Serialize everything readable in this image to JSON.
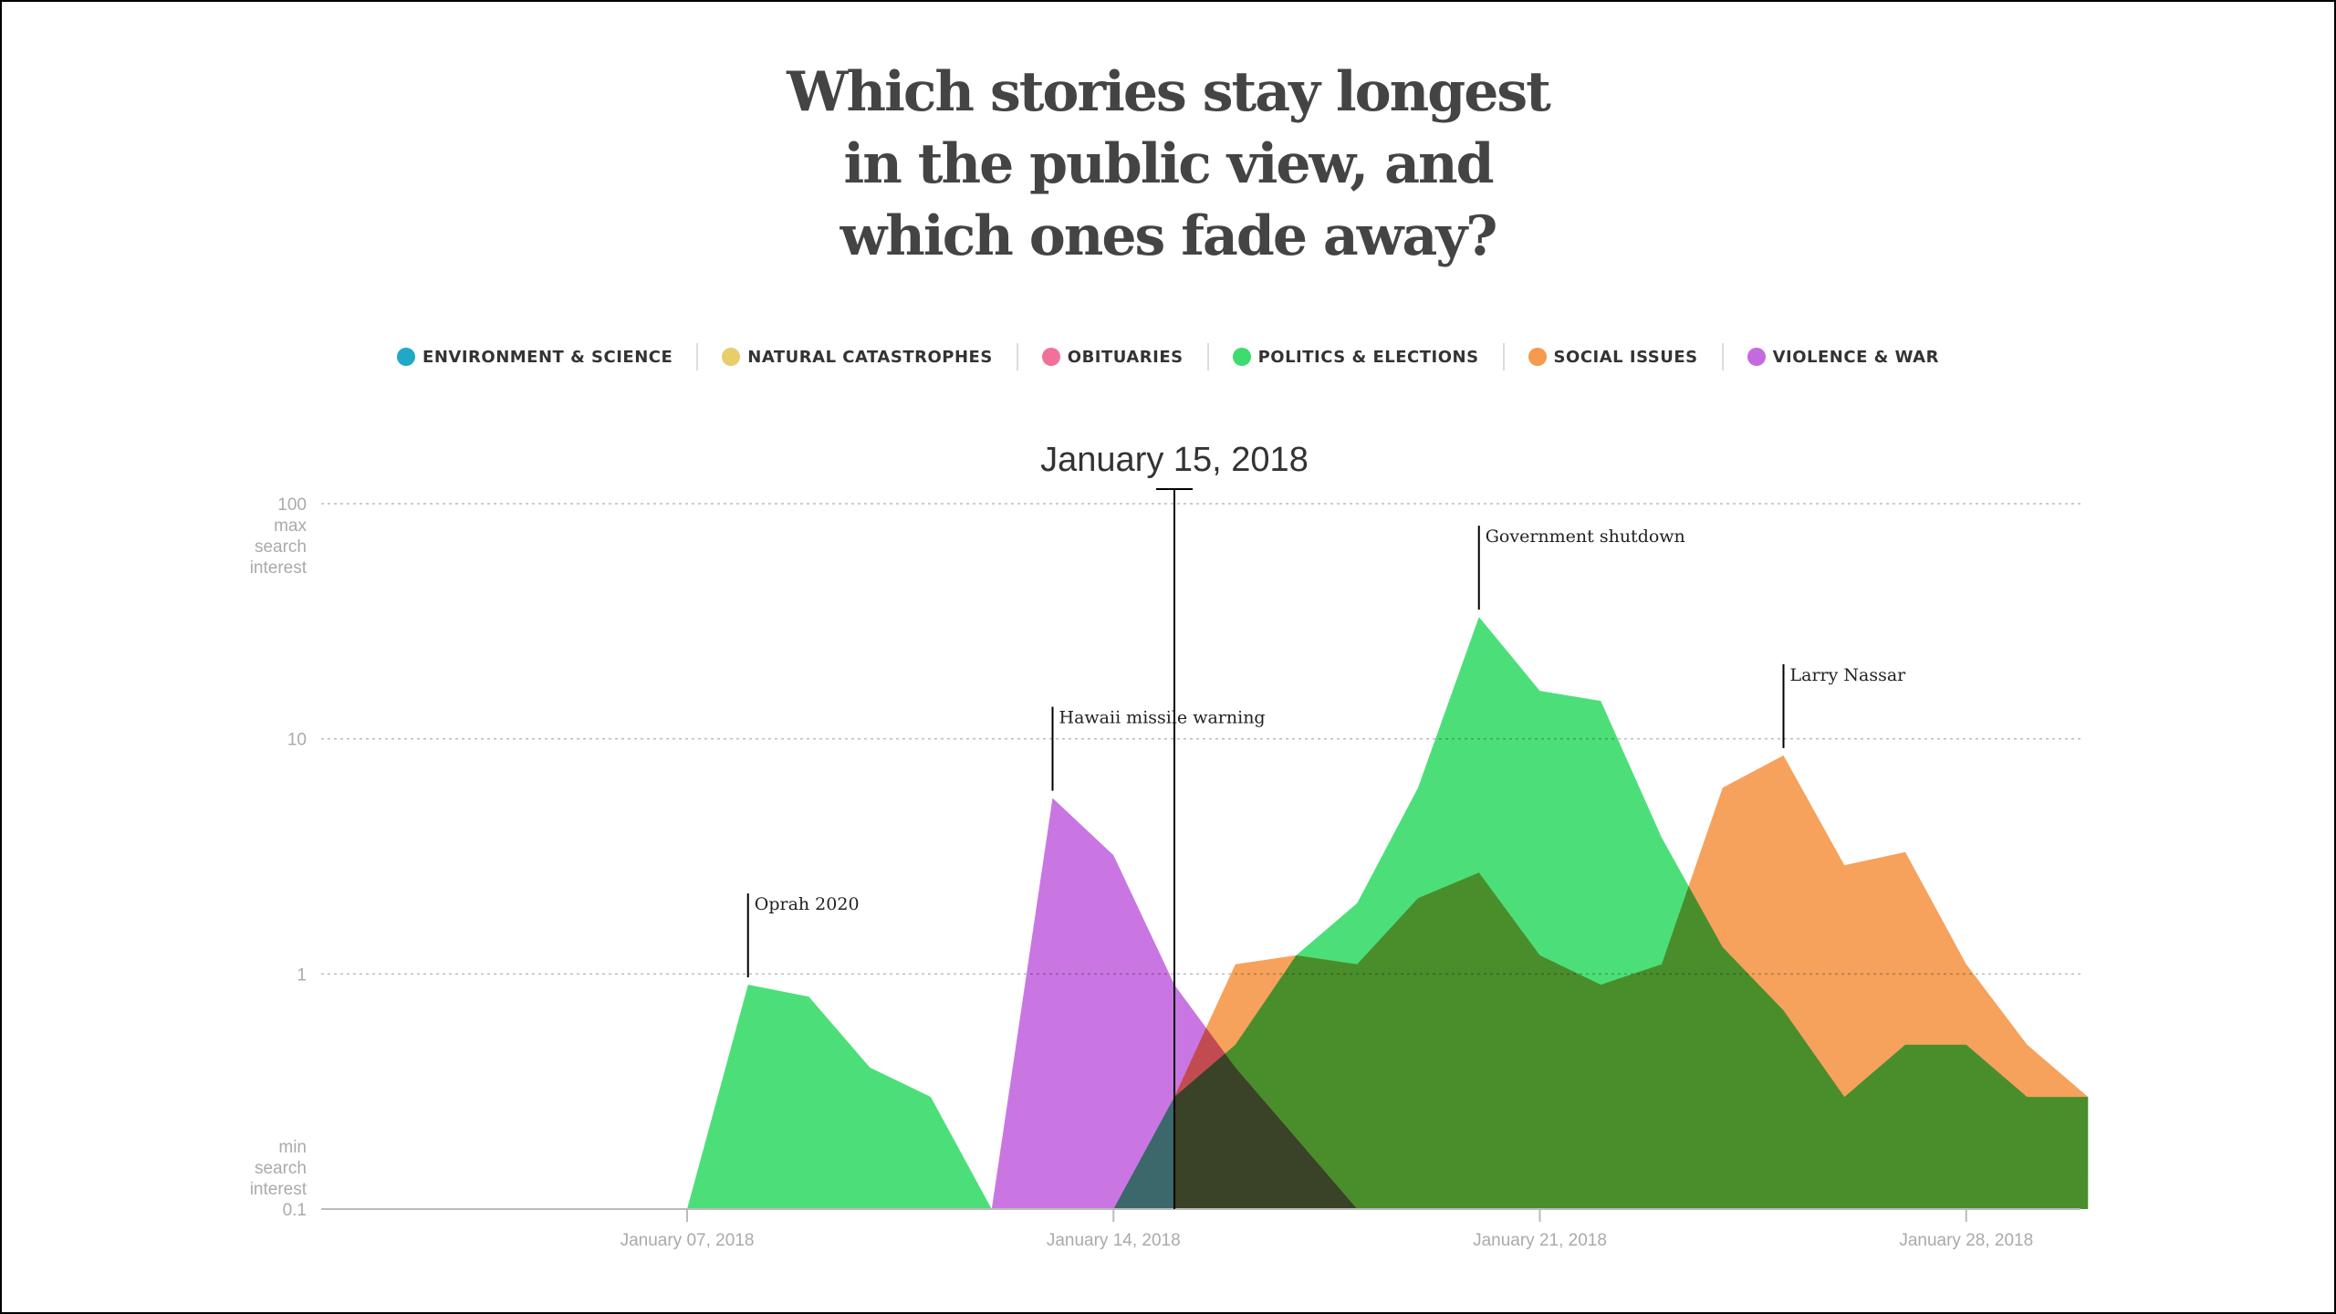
{
  "title": {
    "line1": "Which stories stay longest",
    "line2": "in the public view, and",
    "line3": "which ones fade away?"
  },
  "legend": [
    {
      "label": "ENVIRONMENT & SCIENCE",
      "color": "#20a8c8"
    },
    {
      "label": "NATURAL CATASTROPHES",
      "color": "#e8cd6a"
    },
    {
      "label": "OBITUARIES",
      "color": "#f0729a"
    },
    {
      "label": "POLITICS & ELECTIONS",
      "color": "#3ddc6e"
    },
    {
      "label": "SOCIAL ISSUES",
      "color": "#f59a4e"
    },
    {
      "label": "VIOLENCE & WAR",
      "color": "#c46ae0"
    }
  ],
  "chart_data": {
    "type": "area",
    "cursor_label": "January 15, 2018",
    "cursor_date": "2018-01-15",
    "y_scale": "log",
    "ylim": [
      0.1,
      100
    ],
    "y_ticks": [
      {
        "value": 100,
        "label": "100",
        "note": [
          "max",
          "search",
          "interest"
        ]
      },
      {
        "value": 10,
        "label": "10",
        "note": []
      },
      {
        "value": 1,
        "label": "1",
        "note": []
      },
      {
        "value": 0.1,
        "label": "0.1",
        "note": [
          "min",
          "search",
          "interest"
        ]
      }
    ],
    "x_ticks": [
      {
        "date": "2018-01-07",
        "label": "January 07, 2018"
      },
      {
        "date": "2018-01-14",
        "label": "January 14, 2018"
      },
      {
        "date": "2018-01-21",
        "label": "January 21, 2018"
      },
      {
        "date": "2018-01-28",
        "label": "January 28, 2018"
      }
    ],
    "xlim": [
      "2018-01-01",
      "2018-01-30"
    ],
    "grid": true,
    "legend_position": "top",
    "series": [
      {
        "name": "POLITICS & ELECTIONS",
        "color": "#3ddc6e",
        "points": [
          [
            "2018-01-07",
            0.1
          ],
          [
            "2018-01-08",
            0.9
          ],
          [
            "2018-01-09",
            0.8
          ],
          [
            "2018-01-10",
            0.4
          ],
          [
            "2018-01-11",
            0.3
          ],
          [
            "2018-01-12",
            0.1
          ]
        ]
      },
      {
        "name": "VIOLENCE & WAR",
        "color": "#c46ae0",
        "points": [
          [
            "2018-01-12",
            0.1
          ],
          [
            "2018-01-13",
            5.6
          ],
          [
            "2018-01-14",
            3.2
          ],
          [
            "2018-01-15",
            0.9
          ],
          [
            "2018-01-16",
            0.4
          ],
          [
            "2018-01-17",
            0.2
          ],
          [
            "2018-01-18",
            0.1
          ]
        ]
      },
      {
        "name": "SOCIAL ISSUES",
        "color": "#f59a4e",
        "points": [
          [
            "2018-01-15",
            0.3
          ],
          [
            "2018-01-16",
            1.1
          ],
          [
            "2018-01-17",
            1.2
          ],
          [
            "2018-01-18",
            1.1
          ],
          [
            "2018-01-19",
            2.1
          ],
          [
            "2018-01-20",
            2.7
          ],
          [
            "2018-01-21",
            1.2
          ],
          [
            "2018-01-22",
            0.9
          ],
          [
            "2018-01-23",
            1.1
          ],
          [
            "2018-01-24",
            6.2
          ],
          [
            "2018-01-25",
            8.5
          ],
          [
            "2018-01-26",
            2.9
          ],
          [
            "2018-01-27",
            3.3
          ],
          [
            "2018-01-28",
            1.1
          ],
          [
            "2018-01-29",
            0.5
          ],
          [
            "2018-01-30",
            0.3
          ]
        ]
      },
      {
        "name": "POLITICS & ELECTIONS",
        "color": "#3ddc6e",
        "points": [
          [
            "2018-01-14",
            0.1
          ],
          [
            "2018-01-15",
            0.3
          ],
          [
            "2018-01-16",
            0.5
          ],
          [
            "2018-01-17",
            1.2
          ],
          [
            "2018-01-18",
            2.0
          ],
          [
            "2018-01-19",
            6.2
          ],
          [
            "2018-01-20",
            33
          ],
          [
            "2018-01-21",
            16
          ],
          [
            "2018-01-22",
            14.5
          ],
          [
            "2018-01-23",
            3.8
          ],
          [
            "2018-01-24",
            1.3
          ],
          [
            "2018-01-25",
            0.7
          ],
          [
            "2018-01-26",
            0.3
          ],
          [
            "2018-01-27",
            0.5
          ],
          [
            "2018-01-28",
            0.5
          ],
          [
            "2018-01-29",
            0.3
          ],
          [
            "2018-01-30",
            0.3
          ]
        ]
      }
    ],
    "annotations": [
      {
        "text": "Oprah 2020",
        "date": "2018-01-08",
        "value": 0.9
      },
      {
        "text": "Hawaii missile warning",
        "date": "2018-01-13",
        "value": 5.6
      },
      {
        "text": "Government shutdown",
        "date": "2018-01-20",
        "value": 33
      },
      {
        "text": "Larry Nassar",
        "date": "2018-01-25",
        "value": 8.5
      }
    ]
  }
}
